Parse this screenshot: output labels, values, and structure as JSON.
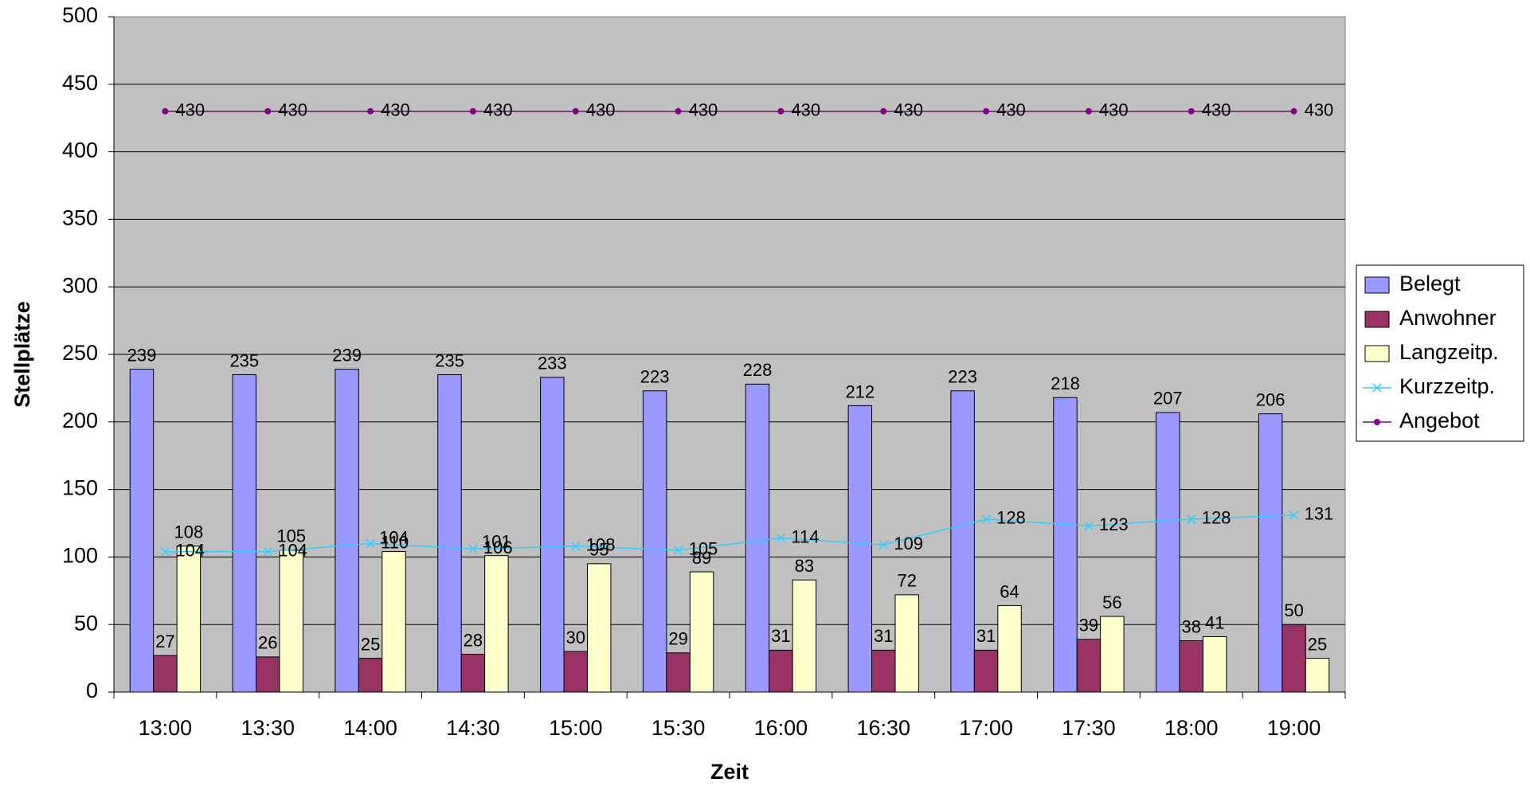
{
  "chart_data": {
    "type": "bar",
    "xlabel": "Zeit",
    "ylabel": "Stellplätze",
    "categories": [
      "13:00",
      "13:30",
      "14:00",
      "14:30",
      "15:00",
      "15:30",
      "16:00",
      "16:30",
      "17:00",
      "17:30",
      "18:00",
      "19:00"
    ],
    "series": [
      {
        "name": "Belegt",
        "type": "bar",
        "color": "#9999ff",
        "values": [
          239,
          235,
          239,
          235,
          233,
          223,
          228,
          212,
          223,
          218,
          207,
          206
        ]
      },
      {
        "name": "Anwohner",
        "type": "bar",
        "color": "#993366",
        "values": [
          27,
          26,
          25,
          28,
          30,
          29,
          31,
          31,
          31,
          39,
          38,
          50
        ]
      },
      {
        "name": "Langzeitp.",
        "type": "bar",
        "color": "#ffffcc",
        "values": [
          108,
          105,
          104,
          101,
          95,
          89,
          83,
          72,
          64,
          56,
          41,
          25
        ]
      },
      {
        "name": "Kurzzeitp.",
        "type": "line",
        "marker": "x",
        "color": "#33ccff",
        "values": [
          104,
          104,
          110,
          106,
          108,
          105,
          114,
          109,
          128,
          123,
          128,
          131
        ]
      },
      {
        "name": "Angebot",
        "type": "line",
        "marker": "circle",
        "color": "#800080",
        "values": [
          430,
          430,
          430,
          430,
          430,
          430,
          430,
          430,
          430,
          430,
          430,
          430
        ]
      }
    ],
    "ylim": [
      0,
      500
    ],
    "yticks": [
      0,
      50,
      100,
      150,
      200,
      250,
      300,
      350,
      400,
      450,
      500
    ],
    "grid": true
  }
}
